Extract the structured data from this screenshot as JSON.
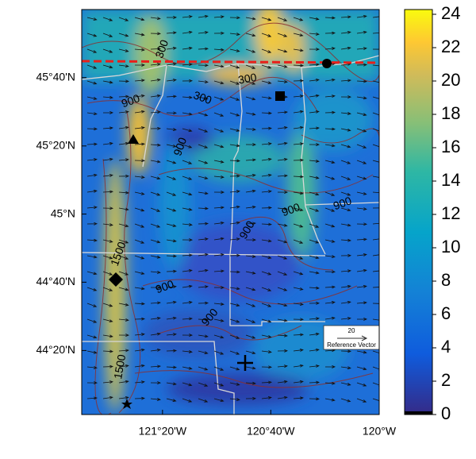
{
  "map": {
    "xlim": [
      -121.83,
      -120.0
    ],
    "ylim": [
      44.02,
      46.0
    ],
    "xticks": [
      {
        "value": -121.333,
        "label": "121°20'W"
      },
      {
        "value": -120.667,
        "label": "120°40'W"
      },
      {
        "value": -120.0,
        "label": "120°W"
      }
    ],
    "yticks": [
      {
        "value": 44.333,
        "label": "44°20'N"
      },
      {
        "value": 44.667,
        "label": "44°40'N"
      },
      {
        "value": 45.0,
        "label": "45°N"
      },
      {
        "value": 45.333,
        "label": "45°20'N"
      },
      {
        "value": 45.667,
        "label": "45°40'N"
      }
    ]
  },
  "contour_labels": [
    "300",
    "300",
    "300",
    "900",
    "900",
    "900",
    "900",
    "900",
    "900",
    "900",
    "1500",
    "1500"
  ],
  "reference_vector": {
    "value": 20,
    "label": "Reference Vector"
  },
  "colorbar": {
    "ylim": [
      0,
      24
    ],
    "yticks": [
      0,
      2,
      4,
      6,
      8,
      10,
      12,
      14,
      16,
      18,
      20,
      22,
      24
    ]
  }
}
